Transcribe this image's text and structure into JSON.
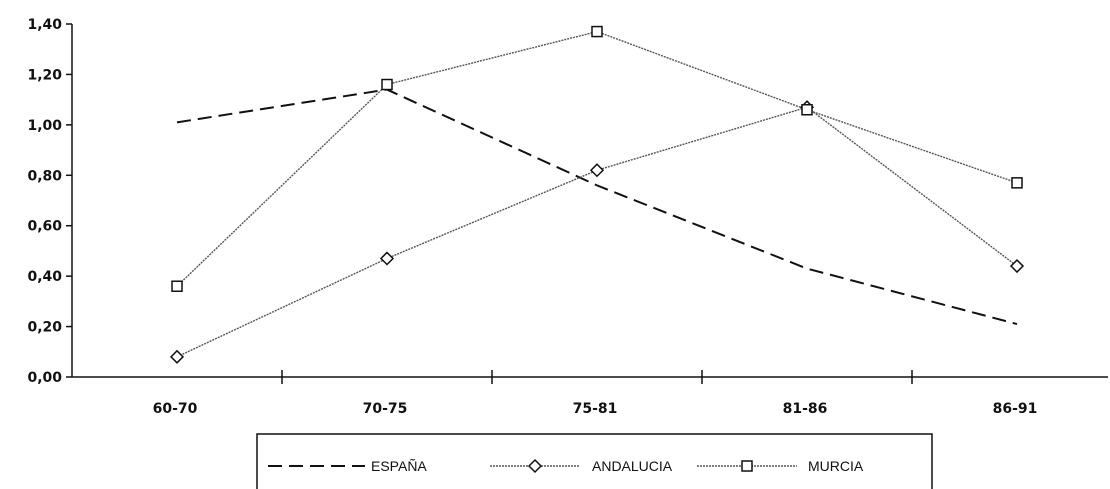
{
  "chart_data": {
    "type": "line",
    "title": "",
    "xlabel": "",
    "ylabel": "",
    "categories": [
      "60-70",
      "70-75",
      "75-81",
      "81-86",
      "86-91"
    ],
    "ylim": [
      0,
      1.4
    ],
    "yticks": [
      "0,00",
      "0,20",
      "0,40",
      "0,60",
      "0,80",
      "1,00",
      "1,20",
      "1,40"
    ],
    "grid": false,
    "legend_position": "bottom",
    "series": [
      {
        "name": "ESPAÑA",
        "marker": "none",
        "dash": "dashed",
        "color": "#111111",
        "values": [
          1.01,
          1.14,
          0.76,
          0.43,
          0.21
        ]
      },
      {
        "name": "ANDALUCIA",
        "marker": "diamond",
        "dash": "dotted",
        "color": "#111111",
        "values": [
          0.08,
          0.47,
          0.82,
          1.07,
          0.44
        ]
      },
      {
        "name": "MURCIA",
        "marker": "square",
        "dash": "dotted",
        "color": "#111111",
        "values": [
          0.36,
          1.16,
          1.37,
          1.06,
          0.77
        ]
      }
    ]
  }
}
